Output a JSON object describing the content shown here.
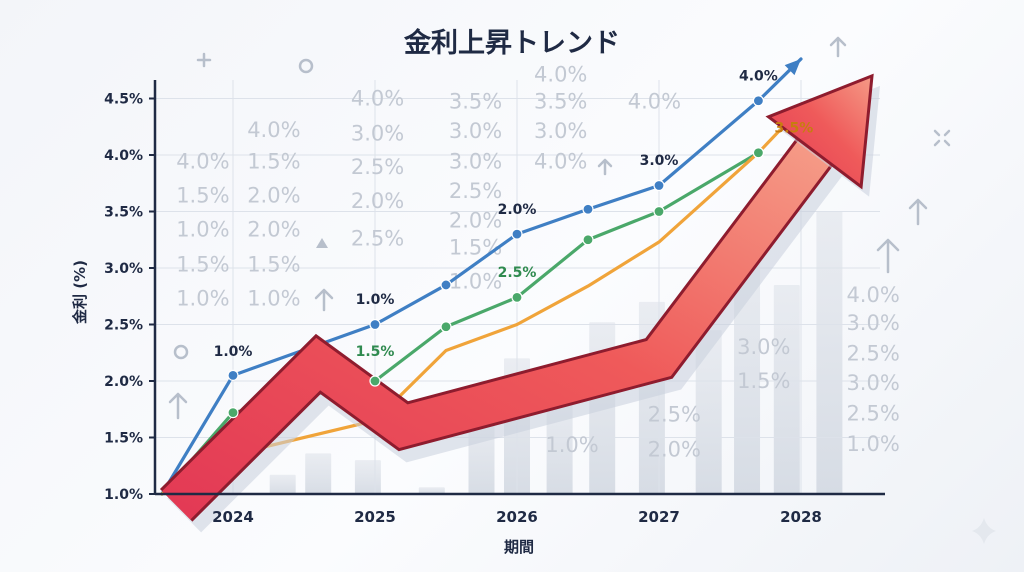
{
  "chart_data": {
    "type": "line",
    "title": "金利上昇トレンド",
    "xlabel": "期間",
    "ylabel": "金利 (%)",
    "categories": [
      "2024",
      "2025",
      "2026",
      "2027",
      "2028"
    ],
    "yticks": [
      "1.0%",
      "1.5%",
      "2.0%",
      "2.5%",
      "3.0%",
      "3.5%",
      "4.0%",
      "4.5%"
    ],
    "ylim": [
      1.0,
      4.5
    ],
    "series": [
      {
        "name": "blue",
        "color": "#3f7fc4",
        "x": [
          2023.5,
          2024.0,
          2025.0,
          2025.5,
          2026.0,
          2026.5,
          2027.0,
          2027.7,
          2028.0
        ],
        "values": [
          1.0,
          2.05,
          2.5,
          2.85,
          3.3,
          3.52,
          3.73,
          4.48,
          4.85
        ]
      },
      {
        "name": "green",
        "color": "#4aa86a",
        "x": [
          2023.5,
          2024.0,
          2025.0,
          2025.5,
          2026.0,
          2026.5,
          2027.0,
          2027.7
        ],
        "values": [
          1.0,
          1.72,
          2.0,
          2.48,
          2.74,
          3.25,
          3.5,
          4.02
        ]
      },
      {
        "name": "orange",
        "color": "#f0a43a",
        "x": [
          2023.5,
          2024.0,
          2025.0,
          2025.5,
          2026.0,
          2026.5,
          2027.0,
          2027.7,
          2027.95
        ],
        "values": [
          1.0,
          1.35,
          1.65,
          2.27,
          2.5,
          2.84,
          3.23,
          4.02,
          4.35
        ]
      }
    ],
    "trend_arrow": {
      "color": "#e8465a",
      "x": [
        2023.6,
        2024.6,
        2025.2,
        2027.0,
        2028.5
      ],
      "values": [
        0.9,
        2.15,
        1.6,
        2.2,
        4.7
      ]
    },
    "data_labels": [
      {
        "text": "1.0%",
        "x": 2024.0,
        "y": 2.22,
        "color": "#1f2a44"
      },
      {
        "text": "1.0%",
        "x": 2025.0,
        "y": 2.68,
        "color": "#1f2a44"
      },
      {
        "text": "2.0%",
        "x": 2026.0,
        "y": 3.48,
        "color": "#1f2a44"
      },
      {
        "text": "3.0%",
        "x": 2027.0,
        "y": 3.91,
        "color": "#1f2a44"
      },
      {
        "text": "4.0%",
        "x": 2027.7,
        "y": 4.66,
        "color": "#1f2a44"
      },
      {
        "text": "1.5%",
        "x": 2025.0,
        "y": 2.22,
        "color": "#2f8a4f"
      },
      {
        "text": "2.5%",
        "x": 2026.0,
        "y": 2.92,
        "color": "#2f8a4f"
      },
      {
        "text": "3.5%",
        "x": 2027.95,
        "y": 4.2,
        "color": "#c77d10"
      }
    ],
    "background_numbers": [
      {
        "text": "4.0%",
        "x": 2024.1,
        "y": 4.16
      },
      {
        "text": "1.5%",
        "x": 2024.1,
        "y": 3.88
      },
      {
        "text": "2.0%",
        "x": 2024.1,
        "y": 3.58
      },
      {
        "text": "2.0%",
        "x": 2024.1,
        "y": 3.28
      },
      {
        "text": "1.5%",
        "x": 2024.1,
        "y": 2.97
      },
      {
        "text": "1.0%",
        "x": 2024.1,
        "y": 2.67
      },
      {
        "text": "4.0%",
        "x": 2023.6,
        "y": 3.88
      },
      {
        "text": "1.5%",
        "x": 2023.6,
        "y": 3.58
      },
      {
        "text": "1.0%",
        "x": 2023.6,
        "y": 3.28
      },
      {
        "text": "1.5%",
        "x": 2023.6,
        "y": 2.97
      },
      {
        "text": "1.0%",
        "x": 2023.6,
        "y": 2.67
      },
      {
        "text": "4.0%",
        "x": 2024.83,
        "y": 4.44
      },
      {
        "text": "3.0%",
        "x": 2024.83,
        "y": 4.13
      },
      {
        "text": "2.5%",
        "x": 2024.83,
        "y": 3.83
      },
      {
        "text": "2.0%",
        "x": 2024.83,
        "y": 3.53
      },
      {
        "text": "2.5%",
        "x": 2024.83,
        "y": 3.2
      },
      {
        "text": "3.5%",
        "x": 2025.52,
        "y": 4.41
      },
      {
        "text": "3.0%",
        "x": 2025.52,
        "y": 4.15
      },
      {
        "text": "3.0%",
        "x": 2025.52,
        "y": 3.88
      },
      {
        "text": "2.5%",
        "x": 2025.52,
        "y": 3.62
      },
      {
        "text": "2.0%",
        "x": 2025.52,
        "y": 3.36
      },
      {
        "text": "1.5%",
        "x": 2025.52,
        "y": 3.12
      },
      {
        "text": "1.0%",
        "x": 2025.52,
        "y": 2.82
      },
      {
        "text": "4.0%",
        "x": 2026.12,
        "y": 4.65
      },
      {
        "text": "3.5%",
        "x": 2026.12,
        "y": 4.41
      },
      {
        "text": "3.0%",
        "x": 2026.12,
        "y": 4.15
      },
      {
        "text": "4.0%",
        "x": 2026.12,
        "y": 3.88
      },
      {
        "text": "4.0%",
        "x": 2026.78,
        "y": 4.41
      },
      {
        "text": "3.0%",
        "x": 2027.55,
        "y": 2.24
      },
      {
        "text": "1.5%",
        "x": 2027.55,
        "y": 1.94
      },
      {
        "text": "2.5%",
        "x": 2026.92,
        "y": 1.64
      },
      {
        "text": "2.0%",
        "x": 2026.92,
        "y": 1.33
      },
      {
        "text": "1.0%",
        "x": 2026.2,
        "y": 1.37
      },
      {
        "text": "4.0%",
        "x": 2028.32,
        "y": 2.7
      },
      {
        "text": "3.0%",
        "x": 2028.32,
        "y": 2.45
      },
      {
        "text": "2.5%",
        "x": 2028.32,
        "y": 2.18
      },
      {
        "text": "3.0%",
        "x": 2028.32,
        "y": 1.92
      },
      {
        "text": "2.5%",
        "x": 2028.32,
        "y": 1.65
      },
      {
        "text": "1.0%",
        "x": 2028.32,
        "y": 1.38
      }
    ],
    "background_bars": [
      {
        "x": 2024.35,
        "top": 1.17
      },
      {
        "x": 2024.6,
        "top": 1.36
      },
      {
        "x": 2024.95,
        "top": 1.3
      },
      {
        "x": 2025.4,
        "top": 1.06
      },
      {
        "x": 2025.75,
        "top": 1.72
      },
      {
        "x": 2026.0,
        "top": 2.2
      },
      {
        "x": 2026.3,
        "top": 1.95
      },
      {
        "x": 2026.6,
        "top": 2.52
      },
      {
        "x": 2026.95,
        "top": 2.7
      },
      {
        "x": 2027.35,
        "top": 2.45
      },
      {
        "x": 2027.62,
        "top": 3.22
      },
      {
        "x": 2027.9,
        "top": 2.85
      },
      {
        "x": 2028.2,
        "top": 3.5
      }
    ],
    "grid": true
  }
}
